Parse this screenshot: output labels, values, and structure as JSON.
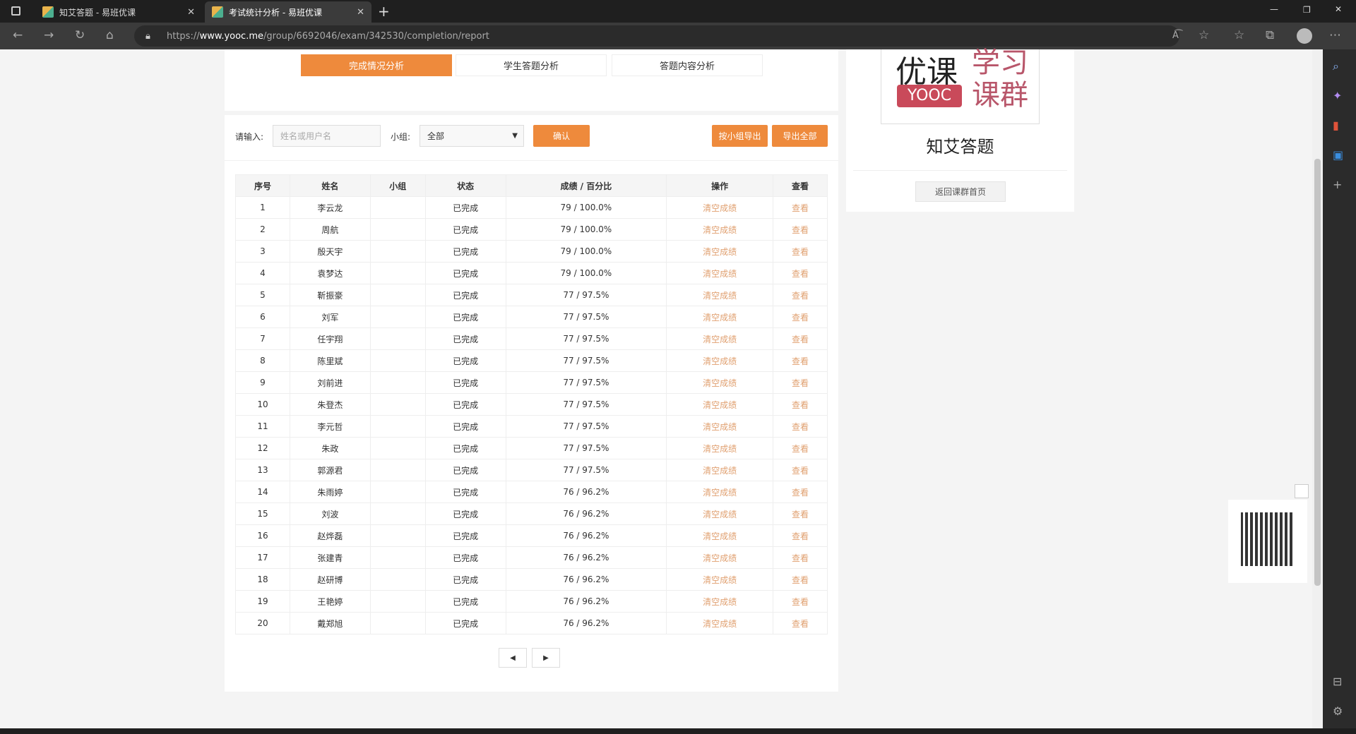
{
  "browser": {
    "tabs": [
      {
        "title": "知艾答题 - 易班优课",
        "active": false
      },
      {
        "title": "考试统计分析 - 易班优课",
        "active": true
      }
    ],
    "url_prefix": "https://",
    "url_domain": "www.yooc.me",
    "url_path": "/group/6692046/exam/342530/completion/report"
  },
  "analysis_tabs": [
    "完成情况分析",
    "学生答题分析",
    "答题内容分析"
  ],
  "filter": {
    "input_label": "请输入:",
    "input_placeholder": "姓名或用户名",
    "group_label": "小组:",
    "group_value": "全部",
    "confirm": "确认",
    "export_group": "按小组导出",
    "export_all": "导出全部"
  },
  "table": {
    "headers": [
      "序号",
      "姓名",
      "小组",
      "状态",
      "成绩 / 百分比",
      "操作",
      "查看"
    ],
    "rows": [
      [
        "1",
        "李云龙",
        "",
        "已完成",
        "79 / 100.0%",
        "清空成绩",
        "查看"
      ],
      [
        "2",
        "周航",
        "",
        "已完成",
        "79 / 100.0%",
        "清空成绩",
        "查看"
      ],
      [
        "3",
        "殷天宇",
        "",
        "已完成",
        "79 / 100.0%",
        "清空成绩",
        "查看"
      ],
      [
        "4",
        "袁梦达",
        "",
        "已完成",
        "79 / 100.0%",
        "清空成绩",
        "查看"
      ],
      [
        "5",
        "靳振豪",
        "",
        "已完成",
        "77 / 97.5%",
        "清空成绩",
        "查看"
      ],
      [
        "6",
        "刘军",
        "",
        "已完成",
        "77 / 97.5%",
        "清空成绩",
        "查看"
      ],
      [
        "7",
        "任宇翔",
        "",
        "已完成",
        "77 / 97.5%",
        "清空成绩",
        "查看"
      ],
      [
        "8",
        "陈里斌",
        "",
        "已完成",
        "77 / 97.5%",
        "清空成绩",
        "查看"
      ],
      [
        "9",
        "刘前进",
        "",
        "已完成",
        "77 / 97.5%",
        "清空成绩",
        "查看"
      ],
      [
        "10",
        "朱登杰",
        "",
        "已完成",
        "77 / 97.5%",
        "清空成绩",
        "查看"
      ],
      [
        "11",
        "李元哲",
        "",
        "已完成",
        "77 / 97.5%",
        "清空成绩",
        "查看"
      ],
      [
        "12",
        "朱政",
        "",
        "已完成",
        "77 / 97.5%",
        "清空成绩",
        "查看"
      ],
      [
        "13",
        "郭源君",
        "",
        "已完成",
        "77 / 97.5%",
        "清空成绩",
        "查看"
      ],
      [
        "14",
        "朱雨婷",
        "",
        "已完成",
        "76 / 96.2%",
        "清空成绩",
        "查看"
      ],
      [
        "15",
        "刘波",
        "",
        "已完成",
        "76 / 96.2%",
        "清空成绩",
        "查看"
      ],
      [
        "16",
        "赵烨磊",
        "",
        "已完成",
        "76 / 96.2%",
        "清空成绩",
        "查看"
      ],
      [
        "17",
        "张建青",
        "",
        "已完成",
        "76 / 96.2%",
        "清空成绩",
        "查看"
      ],
      [
        "18",
        "赵研博",
        "",
        "已完成",
        "76 / 96.2%",
        "清空成绩",
        "查看"
      ],
      [
        "19",
        "王艳婷",
        "",
        "已完成",
        "76 / 96.2%",
        "清空成绩",
        "查看"
      ],
      [
        "20",
        "戴郑旭",
        "",
        "已完成",
        "76 / 96.2%",
        "清空成绩",
        "查看"
      ]
    ]
  },
  "pagination": {
    "prev": "◀",
    "next": "▶"
  },
  "side": {
    "logo_text": "优课 YOOC 学习课群",
    "group_name": "知艾答题",
    "back_button": "返回课群首页"
  },
  "colors": {
    "accent": "#ee8a3c",
    "link": "#e0a070"
  }
}
